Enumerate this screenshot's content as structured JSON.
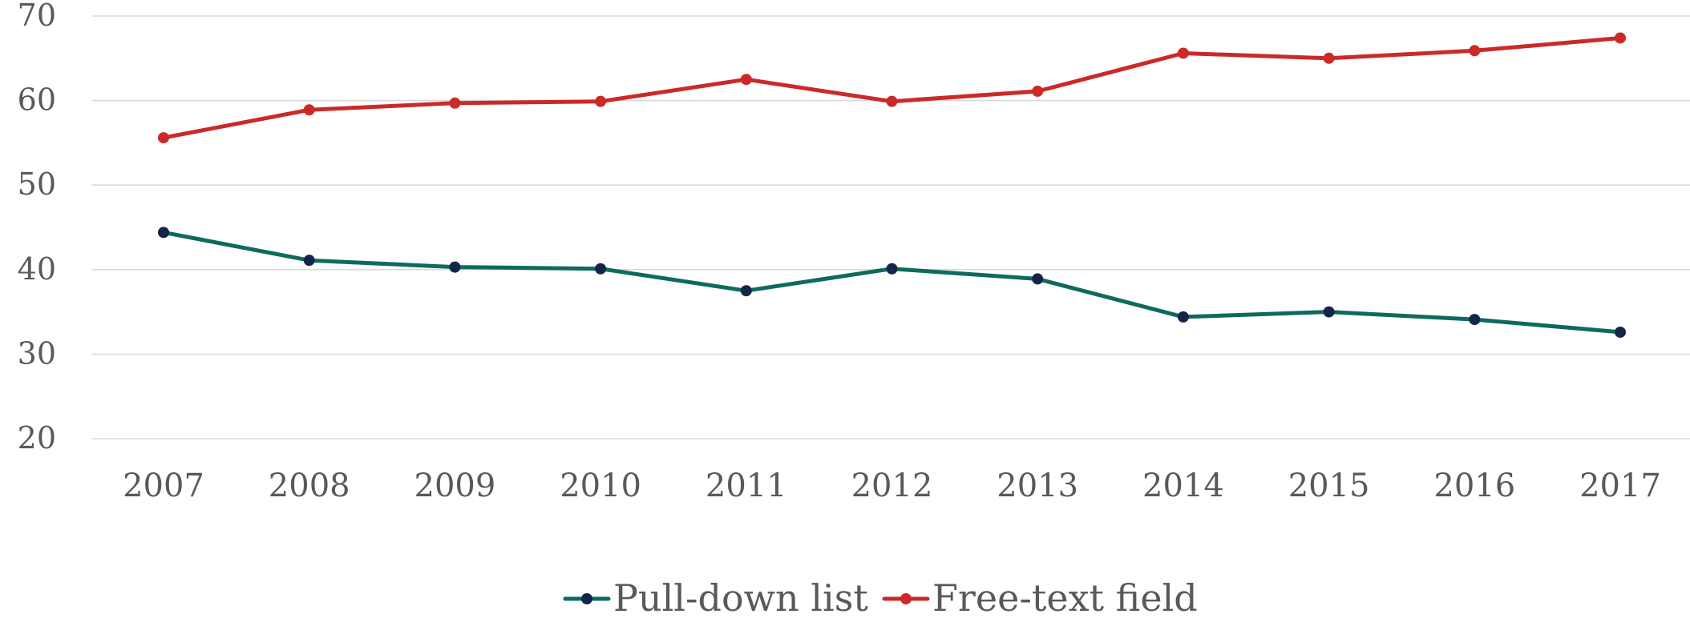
{
  "chart_data": {
    "type": "line",
    "title": "",
    "xlabel": "",
    "ylabel": "",
    "categories": [
      "2007",
      "2008",
      "2009",
      "2010",
      "2011",
      "2012",
      "2013",
      "2014",
      "2015",
      "2016",
      "2017"
    ],
    "ylim": [
      20,
      70
    ],
    "yticks": [
      20,
      30,
      40,
      50,
      60,
      70
    ],
    "grid": true,
    "legend_position": "bottom",
    "series": [
      {
        "name": "Pull-down list",
        "color": "#0e6b5c",
        "marker_color": "#14254a",
        "values": [
          44.4,
          41.1,
          40.3,
          40.1,
          37.5,
          40.1,
          38.9,
          34.4,
          35.0,
          34.1,
          32.6
        ]
      },
      {
        "name": "Free-text field",
        "color": "#cc2929",
        "marker_color": "#cc2929",
        "values": [
          55.6,
          58.9,
          59.7,
          59.9,
          62.5,
          59.9,
          61.1,
          65.6,
          65.0,
          65.9,
          67.4
        ]
      }
    ]
  }
}
